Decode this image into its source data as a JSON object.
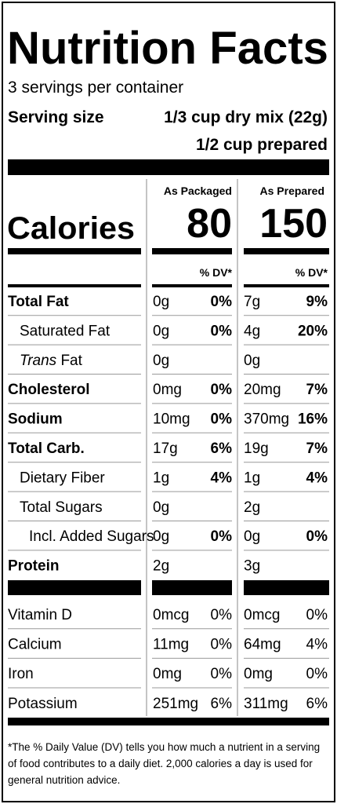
{
  "header": {
    "title": "Nutrition Facts",
    "servings": "3 servings per container",
    "serving_size_label": "Serving size",
    "serving_size_value": "1/3 cup dry mix (22g)",
    "prepared": "1/2 cup prepared"
  },
  "columns": [
    "As Packaged",
    "As Prepared"
  ],
  "calories": {
    "label": "Calories",
    "values": [
      "80",
      "150"
    ]
  },
  "dv_header": [
    "% DV*",
    "% DV*"
  ],
  "nutrients": [
    [
      "Total Fat",
      "0g",
      "0%",
      "7g",
      "9%"
    ],
    [
      "Saturated Fat",
      "0g",
      "0%",
      "4g",
      "20%"
    ],
    [
      [
        "Trans",
        "Fat"
      ],
      "0g",
      null,
      "0g",
      null
    ],
    [
      "Cholesterol",
      "0mg",
      "0%",
      "20mg",
      "7%"
    ],
    [
      "Sodium",
      "10mg",
      "0%",
      "370mg",
      "16%"
    ],
    [
      "Total Carb.",
      "17g",
      "6%",
      "19g",
      "7%"
    ],
    [
      "Dietary Fiber",
      "1g",
      "4%",
      "1g",
      "4%"
    ],
    [
      "Total Sugars",
      "0g",
      null,
      "2g",
      null
    ],
    [
      "Incl. Added Sugars",
      "0g",
      "0%",
      "0g",
      "0%"
    ],
    [
      "Protein",
      "2g",
      null,
      "3g",
      null
    ]
  ],
  "vitamins": [
    [
      "Vitamin D",
      "0mcg",
      "0%",
      "0mcg",
      "0%"
    ],
    [
      "Calcium",
      "11mg",
      "0%",
      "64mg",
      "4%"
    ],
    [
      "Iron",
      "0mg",
      "0%",
      "0mg",
      "0%"
    ],
    [
      "Potassium",
      "251mg",
      "6%",
      "311mg",
      "6%"
    ]
  ],
  "footnote": [
    "*The % Daily Value (DV) tells you how much a nutrient in a serving",
    "of food contributes to a daily diet. 2,000 calories a day is used for",
    "general nutrition advice."
  ]
}
